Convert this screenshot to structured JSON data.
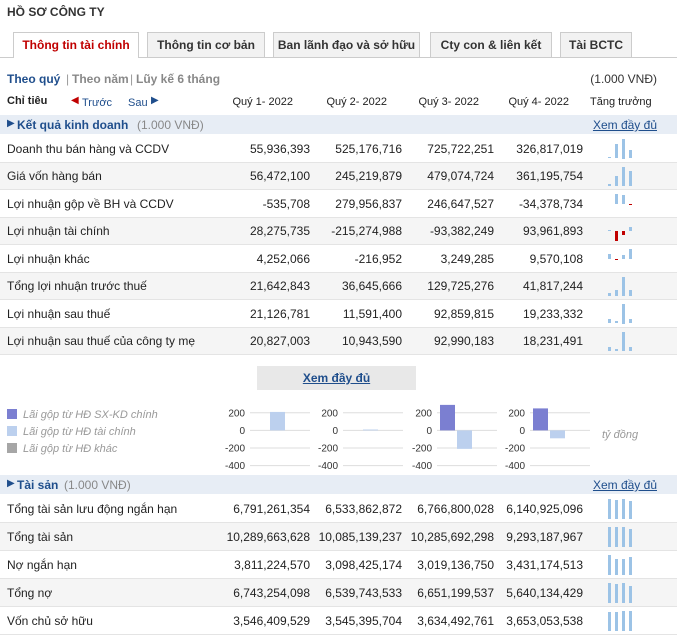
{
  "header": {
    "title": "HỒ SƠ CÔNG TY"
  },
  "tabs": [
    "Thông tin tài chính",
    "Thông tin cơ bản",
    "Ban lãnh đạo và sở hữu",
    "Cty con & liên kết",
    "Tài BCTC"
  ],
  "period": {
    "options": [
      "Theo quý",
      "Theo năm",
      "Lũy kế 6 tháng"
    ],
    "separator": "|",
    "unit": "(1.000 VNĐ)"
  },
  "columns": {
    "label": "Chỉ tiêu",
    "prev": "Trước",
    "next": "Sau",
    "periods": [
      "Quý 1- 2022",
      "Quý 2- 2022",
      "Quý 3- 2022",
      "Quý 4- 2022"
    ],
    "growth": "Tăng trưởng"
  },
  "sections": [
    {
      "title": "Kết quả kinh doanh",
      "unit": "(1.000 VNĐ)",
      "link": "Xem đầy đủ",
      "rows": [
        {
          "label": "Doanh thu bán hàng và CCDV",
          "values": [
            55936393,
            525176716,
            725722251,
            326817019
          ],
          "value_labels": [
            "55,936,393",
            "525,176,716",
            "725,722,251",
            "326,817,019"
          ]
        },
        {
          "label": "Giá vốn hàng bán",
          "values": [
            56472100,
            245219879,
            479074724,
            361195754
          ],
          "value_labels": [
            "56,472,100",
            "245,219,879",
            "479,074,724",
            "361,195,754"
          ]
        },
        {
          "label": "Lợi nhuận gộp về BH và CCDV",
          "values": [
            -535708,
            279956837,
            246647527,
            -34378734
          ],
          "value_labels": [
            "-535,708",
            "279,956,837",
            "246,647,527",
            "-34,378,734"
          ]
        },
        {
          "label": "Lợi nhuận tài chính",
          "values": [
            28275735,
            -215274988,
            -93382249,
            93961893
          ],
          "value_labels": [
            "28,275,735",
            "-215,274,988",
            "-93,382,249",
            "93,961,893"
          ]
        },
        {
          "label": "Lợi nhuận khác",
          "values": [
            4252066,
            -216952,
            3249285,
            9570108
          ],
          "value_labels": [
            "4,252,066",
            "-216,952",
            "3,249,285",
            "9,570,108"
          ]
        },
        {
          "label": "Tổng lợi nhuận trước thuế",
          "values": [
            21642843,
            36645666,
            129725276,
            41817244
          ],
          "value_labels": [
            "21,642,843",
            "36,645,666",
            "129,725,276",
            "41,817,244"
          ]
        },
        {
          "label": "Lợi nhuận sau thuế",
          "values": [
            21126781,
            11591400,
            92859815,
            19233332
          ],
          "value_labels": [
            "21,126,781",
            "11,591,400",
            "92,859,815",
            "19,233,332"
          ]
        },
        {
          "label": "Lợi nhuận sau thuế của công ty mẹ",
          "values": [
            20827003,
            10943590,
            92990183,
            18231491
          ],
          "value_labels": [
            "20,827,003",
            "10,943,590",
            "92,990,183",
            "18,231,491"
          ]
        }
      ]
    },
    {
      "title": "Tài sản",
      "unit": "(1.000 VNĐ)",
      "link": "Xem đầy đủ",
      "rows": [
        {
          "label": "Tổng tài sản lưu động ngắn hạn",
          "values": [
            6791261354,
            6533862872,
            6766800028,
            6140925096
          ],
          "value_labels": [
            "6,791,261,354",
            "6,533,862,872",
            "6,766,800,028",
            "6,140,925,096"
          ]
        },
        {
          "label": "Tổng tài sản",
          "values": [
            10289663628,
            10085139237,
            10285692298,
            9293187967
          ],
          "value_labels": [
            "10,289,663,628",
            "10,085,139,237",
            "10,285,692,298",
            "9,293,187,967"
          ]
        },
        {
          "label": "Nợ ngắn hạn",
          "values": [
            3811224570,
            3098425174,
            3019136750,
            3431174513
          ],
          "value_labels": [
            "3,811,224,570",
            "3,098,425,174",
            "3,019,136,750",
            "3,431,174,513"
          ]
        },
        {
          "label": "Tổng nợ",
          "values": [
            6743254098,
            6539743533,
            6651199537,
            5640134429
          ],
          "value_labels": [
            "6,743,254,098",
            "6,539,743,533",
            "6,651,199,537",
            "5,640,134,429"
          ]
        },
        {
          "label": "Vốn chủ sở hữu",
          "values": [
            3546409529,
            3545395704,
            3634492761,
            3653053538
          ],
          "value_labels": [
            "3,546,409,529",
            "3,545,395,704",
            "3,634,492,761",
            "3,653,053,538"
          ]
        }
      ]
    }
  ],
  "more_button": "Xem đầy đủ",
  "mini_charts": {
    "type": "bar",
    "unit": "tỷ đồng",
    "ylim": [
      -450,
      300
    ],
    "yticks": [
      200,
      0,
      -200,
      -400
    ],
    "series": [
      {
        "name": "Lãi gộp từ HĐ SX-KD chính",
        "color": "#7b7fd1",
        "values": [
          0,
          0,
          290,
          250
        ]
      },
      {
        "name": "Lãi gộp từ HĐ tài chính",
        "color": "#bcd0ee",
        "values": [
          210,
          10,
          -210,
          -90
        ]
      },
      {
        "name": "Lãi gộp từ HĐ khác",
        "color": "#a6a6a6",
        "values": [
          0,
          0,
          0,
          0
        ]
      }
    ]
  }
}
